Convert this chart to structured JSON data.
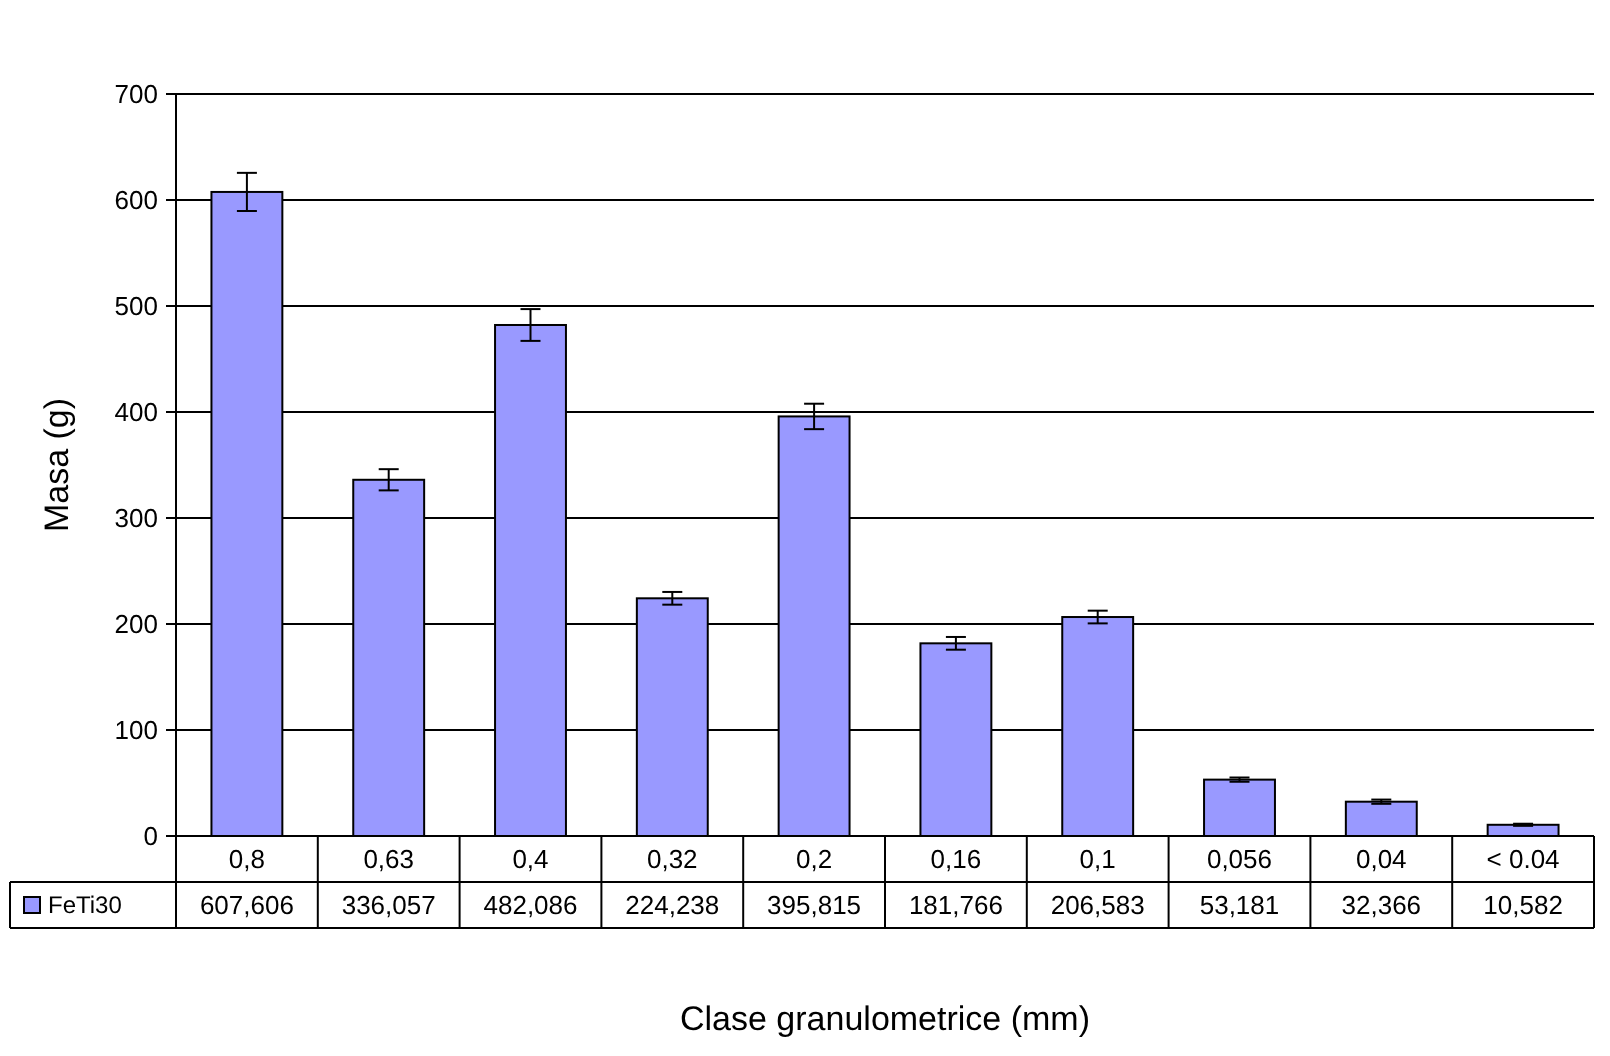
{
  "chart_data": {
    "type": "bar",
    "xlabel": "Clase granulometrice (mm)",
    "ylabel": "Masa (g)",
    "categories": [
      "0,8",
      "0,63",
      "0,4",
      "0,32",
      "0,2",
      "0,16",
      "0,1",
      "0,056",
      "0,04",
      "< 0.04"
    ],
    "series": [
      {
        "name": "FeTi30",
        "color": "#9999ff",
        "values": [
          607.606,
          336.057,
          482.086,
          224.238,
          395.815,
          181.766,
          206.583,
          53.181,
          32.366,
          10.582
        ],
        "value_labels": [
          "607,606",
          "336,057",
          "482,086",
          "224,238",
          "395,815",
          "181,766",
          "206,583",
          "53,181",
          "32,366",
          "10,582"
        ],
        "errors": [
          18,
          10,
          15,
          6,
          12,
          6,
          6,
          2,
          2,
          1
        ]
      }
    ],
    "ylim": [
      0,
      700
    ],
    "yticks": [
      0,
      100,
      200,
      300,
      400,
      500,
      600,
      700
    ],
    "grid": "y",
    "legend": "bottom left"
  }
}
